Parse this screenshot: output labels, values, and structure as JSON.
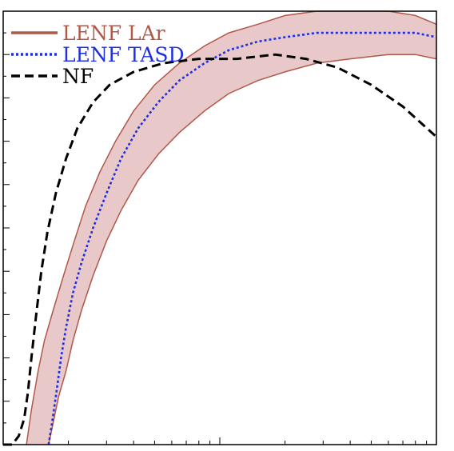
{
  "chart_data": {
    "type": "line",
    "title": "",
    "xlabel": "",
    "ylabel": "",
    "xscale": "log",
    "xlim": [
      1,
      100
    ],
    "ylim": [
      0,
      1
    ],
    "grid": false,
    "legend_position": "top-left",
    "series": [
      {
        "name": "LENF LAr",
        "style": "solid",
        "color": "#b0584a",
        "fill": "#e8c8c8",
        "band_upper": [
          [
            1.28,
            0.0
          ],
          [
            1.35,
            0.08
          ],
          [
            1.45,
            0.17
          ],
          [
            1.55,
            0.24
          ],
          [
            1.7,
            0.31
          ],
          [
            1.9,
            0.39
          ],
          [
            2.1,
            0.46
          ],
          [
            2.4,
            0.55
          ],
          [
            2.8,
            0.63
          ],
          [
            3.3,
            0.7
          ],
          [
            4.0,
            0.77
          ],
          [
            5.0,
            0.83
          ],
          [
            6.5,
            0.88
          ],
          [
            8.5,
            0.92
          ],
          [
            11.0,
            0.95
          ],
          [
            15.0,
            0.97
          ],
          [
            20.0,
            0.99
          ],
          [
            28.0,
            1.0
          ],
          [
            40.0,
            1.0
          ],
          [
            60.0,
            1.0
          ],
          [
            80.0,
            0.99
          ],
          [
            100.0,
            0.97
          ]
        ],
        "band_lower": [
          [
            1.62,
            0.0
          ],
          [
            1.7,
            0.05
          ],
          [
            1.8,
            0.11
          ],
          [
            1.95,
            0.17
          ],
          [
            2.1,
            0.24
          ],
          [
            2.3,
            0.31
          ],
          [
            2.6,
            0.39
          ],
          [
            3.0,
            0.47
          ],
          [
            3.5,
            0.54
          ],
          [
            4.2,
            0.61
          ],
          [
            5.2,
            0.67
          ],
          [
            6.5,
            0.72
          ],
          [
            8.5,
            0.77
          ],
          [
            11.0,
            0.81
          ],
          [
            15.0,
            0.84
          ],
          [
            20.0,
            0.86
          ],
          [
            28.0,
            0.88
          ],
          [
            40.0,
            0.89
          ],
          [
            60.0,
            0.9
          ],
          [
            80.0,
            0.9
          ],
          [
            100.0,
            0.89
          ]
        ]
      },
      {
        "name": "LENF TASD",
        "style": "dotted",
        "color": "#1f2fe0",
        "points": [
          [
            1.62,
            0.0
          ],
          [
            1.68,
            0.05
          ],
          [
            1.76,
            0.12
          ],
          [
            1.85,
            0.2
          ],
          [
            1.95,
            0.27
          ],
          [
            2.1,
            0.35
          ],
          [
            2.3,
            0.42
          ],
          [
            2.6,
            0.5
          ],
          [
            3.0,
            0.58
          ],
          [
            3.5,
            0.66
          ],
          [
            4.2,
            0.73
          ],
          [
            5.2,
            0.79
          ],
          [
            6.5,
            0.84
          ],
          [
            8.5,
            0.88
          ],
          [
            11.0,
            0.91
          ],
          [
            15.0,
            0.93
          ],
          [
            20.0,
            0.94
          ],
          [
            28.0,
            0.95
          ],
          [
            40.0,
            0.95
          ],
          [
            60.0,
            0.95
          ],
          [
            80.0,
            0.95
          ],
          [
            100.0,
            0.94
          ]
        ]
      },
      {
        "name": "NF",
        "style": "dashed",
        "color": "#000000",
        "points": [
          [
            1.0,
            0.0
          ],
          [
            1.1,
            0.0
          ],
          [
            1.18,
            0.02
          ],
          [
            1.25,
            0.06
          ],
          [
            1.3,
            0.12
          ],
          [
            1.35,
            0.2
          ],
          [
            1.42,
            0.3
          ],
          [
            1.5,
            0.4
          ],
          [
            1.6,
            0.49
          ],
          [
            1.75,
            0.58
          ],
          [
            1.95,
            0.66
          ],
          [
            2.2,
            0.73
          ],
          [
            2.6,
            0.79
          ],
          [
            3.1,
            0.83
          ],
          [
            4.0,
            0.86
          ],
          [
            5.5,
            0.88
          ],
          [
            8.0,
            0.89
          ],
          [
            12.0,
            0.89
          ],
          [
            18.0,
            0.9
          ],
          [
            25.0,
            0.89
          ],
          [
            35.0,
            0.87
          ],
          [
            50.0,
            0.83
          ],
          [
            70.0,
            0.78
          ],
          [
            100.0,
            0.71
          ]
        ]
      }
    ]
  }
}
